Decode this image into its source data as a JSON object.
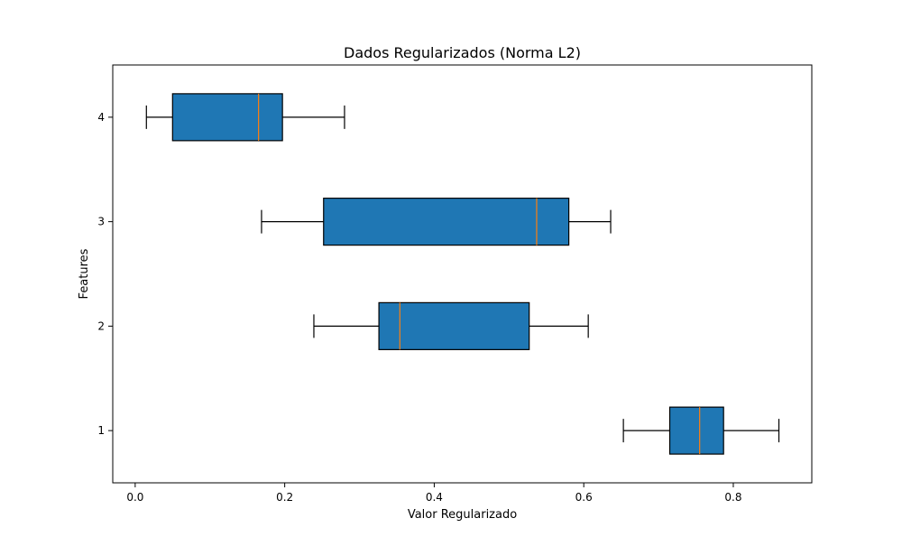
{
  "chart_data": {
    "type": "boxplot",
    "orientation": "horizontal",
    "title": "Dados Regularizados (Norma L2)",
    "xlabel": "Valor Regularizado",
    "ylabel": "Features",
    "xlim": [
      -0.03,
      0.905
    ],
    "ylim": [
      0.5,
      4.5
    ],
    "xticks": [
      0.0,
      0.2,
      0.4,
      0.6,
      0.8
    ],
    "xtick_labels": [
      "0.0",
      "0.2",
      "0.4",
      "0.6",
      "0.8"
    ],
    "categories": [
      "1",
      "2",
      "3",
      "4"
    ],
    "grid": false,
    "box_color": "#1f77b4",
    "median_color": "#ff7f0e",
    "boxes": [
      {
        "label": "1",
        "whisker_low": 0.653,
        "q1": 0.715,
        "median": 0.755,
        "q3": 0.787,
        "whisker_high": 0.861
      },
      {
        "label": "2",
        "whisker_low": 0.239,
        "q1": 0.326,
        "median": 0.354,
        "q3": 0.527,
        "whisker_high": 0.606
      },
      {
        "label": "3",
        "whisker_low": 0.169,
        "q1": 0.252,
        "median": 0.537,
        "q3": 0.58,
        "whisker_high": 0.636
      },
      {
        "label": "4",
        "whisker_low": 0.015,
        "q1": 0.05,
        "median": 0.165,
        "q3": 0.197,
        "whisker_high": 0.28
      }
    ]
  }
}
